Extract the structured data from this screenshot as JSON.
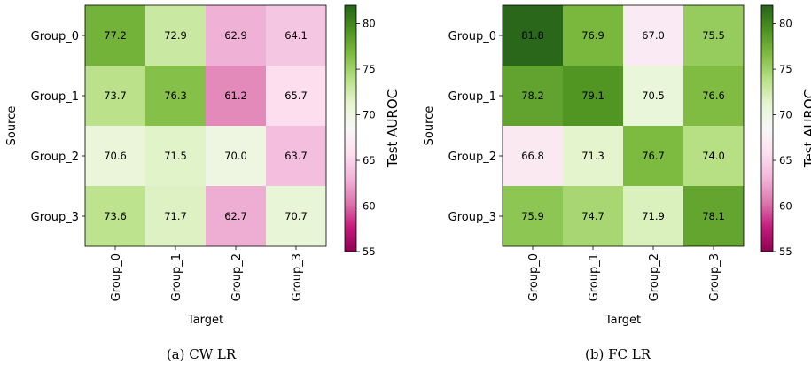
{
  "chart_data": [
    {
      "type": "heatmap",
      "caption": "(a) CW LR",
      "xlabel": "Target",
      "ylabel": "Source",
      "x_categories": [
        "Group_0",
        "Group_1",
        "Group_2",
        "Group_3"
      ],
      "y_categories": [
        "Group_0",
        "Group_1",
        "Group_2",
        "Group_3"
      ],
      "values": [
        [
          77.2,
          72.9,
          62.9,
          64.1
        ],
        [
          73.7,
          76.3,
          61.2,
          65.7
        ],
        [
          70.6,
          71.5,
          70.0,
          63.7
        ],
        [
          73.6,
          71.7,
          62.7,
          70.7
        ]
      ],
      "value_labels": [
        [
          "77.2",
          "72.9",
          "62.9",
          "64.1"
        ],
        [
          "73.7",
          "76.3",
          "61.2",
          "65.7"
        ],
        [
          "70.6",
          "71.5",
          "70.0",
          "63.7"
        ],
        [
          "73.6",
          "71.7",
          "62.7",
          "70.7"
        ]
      ],
      "colorbar": {
        "label": "Test AUROC",
        "colormap": "PiYG",
        "range": [
          55,
          82
        ],
        "ticks": [
          55,
          60,
          65,
          70,
          75,
          80
        ],
        "tick_labels": [
          "55",
          "60",
          "65",
          "70",
          "75",
          "80"
        ]
      }
    },
    {
      "type": "heatmap",
      "caption": "(b) FC LR",
      "xlabel": "Target",
      "ylabel": "Source",
      "x_categories": [
        "Group_0",
        "Group_1",
        "Group_2",
        "Group_3"
      ],
      "y_categories": [
        "Group_0",
        "Group_1",
        "Group_2",
        "Group_3"
      ],
      "values": [
        [
          81.8,
          76.9,
          67.0,
          75.5
        ],
        [
          78.2,
          79.1,
          70.5,
          76.6
        ],
        [
          66.8,
          71.3,
          76.7,
          74.0
        ],
        [
          75.9,
          74.7,
          71.9,
          78.1
        ]
      ],
      "value_labels": [
        [
          "81.8",
          "76.9",
          "67.0",
          "75.5"
        ],
        [
          "78.2",
          "79.1",
          "70.5",
          "76.6"
        ],
        [
          "66.8",
          "71.3",
          "76.7",
          "74.0"
        ],
        [
          "75.9",
          "74.7",
          "71.9",
          "78.1"
        ]
      ],
      "colorbar": {
        "label": "Test AUROC",
        "colormap": "PiYG",
        "range": [
          55,
          82
        ],
        "ticks": [
          55,
          60,
          65,
          70,
          75,
          80
        ],
        "tick_labels": [
          "55",
          "60",
          "65",
          "70",
          "75",
          "80"
        ]
      }
    }
  ]
}
